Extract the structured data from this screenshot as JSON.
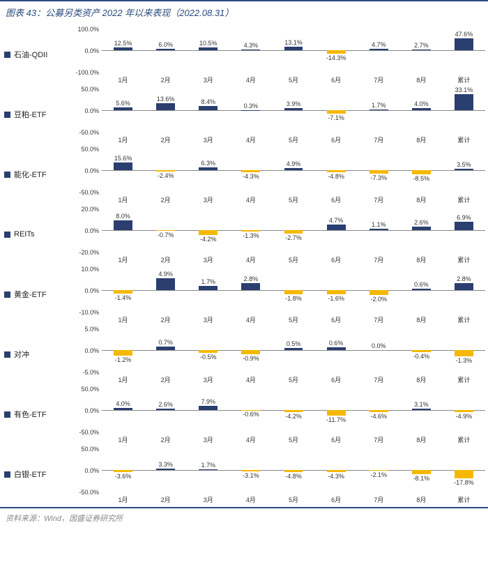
{
  "title": "图表 43：公募另类资产 2022 年以来表现（2022.08.31）",
  "source": "资料来源：Wind，国盛证券研究所",
  "categories": [
    "1月",
    "2月",
    "3月",
    "4月",
    "5月",
    "6月",
    "7月",
    "8月",
    "累计"
  ],
  "colors": {
    "positive": "#2a3e6f",
    "negative": "#f5b800",
    "border": "#2a4b7c",
    "text": "#333333",
    "title": "#2a4b7c",
    "source": "#888888",
    "baseline": "#888888"
  },
  "label_fontsize": 9,
  "title_fontsize": 13,
  "bar_width_ratio": 0.44,
  "series": [
    {
      "name": "石油-QDII",
      "ylim": [
        -100,
        100
      ],
      "yticks": [
        -100,
        0,
        100
      ],
      "values": [
        12.5,
        6.0,
        10.5,
        4.3,
        13.1,
        -14.3,
        4.7,
        2.7,
        47.6
      ],
      "x_labels_over": [
        false,
        false,
        false,
        false,
        false,
        true,
        false,
        false,
        false
      ]
    },
    {
      "name": "豆粕-ETF",
      "ylim": [
        -50,
        50
      ],
      "yticks": [
        -50,
        0,
        50
      ],
      "values": [
        5.6,
        13.6,
        8.4,
        0.3,
        3.9,
        -7.1,
        1.7,
        4.0,
        33.1
      ],
      "x_labels_over": [
        false,
        false,
        false,
        false,
        false,
        true,
        false,
        false,
        false
      ]
    },
    {
      "name": "能化-ETF",
      "ylim": [
        -50,
        50
      ],
      "yticks": [
        -50,
        0,
        50
      ],
      "values": [
        15.6,
        -2.4,
        6.3,
        -4.3,
        4.9,
        -4.8,
        -7.3,
        -8.5,
        3.5
      ],
      "x_labels_over": [
        false,
        true,
        false,
        true,
        false,
        true,
        true,
        true,
        false
      ]
    },
    {
      "name": "REITs",
      "ylim": [
        -20,
        20
      ],
      "yticks": [
        -20,
        0,
        20
      ],
      "values": [
        8.0,
        -0.7,
        -4.2,
        -1.3,
        -2.7,
        4.7,
        1.1,
        2.6,
        6.9
      ],
      "x_labels_over": [
        false,
        true,
        true,
        true,
        true,
        false,
        false,
        false,
        false
      ]
    },
    {
      "name": "黄金-ETF",
      "ylim": [
        -10,
        10
      ],
      "yticks": [
        -10,
        0,
        10
      ],
      "values": [
        -1.4,
        4.9,
        1.7,
        2.8,
        -1.8,
        -1.6,
        -2.0,
        0.6,
        2.8
      ],
      "x_labels_over": [
        true,
        false,
        false,
        false,
        true,
        true,
        true,
        false,
        false
      ]
    },
    {
      "name": "对冲",
      "ylim": [
        -5,
        5
      ],
      "yticks": [
        -5,
        0,
        5
      ],
      "values": [
        -1.2,
        0.7,
        -0.5,
        -0.9,
        0.5,
        0.6,
        0.0,
        -0.4,
        -1.3
      ],
      "x_labels_over": [
        true,
        false,
        true,
        true,
        false,
        false,
        false,
        true,
        true
      ]
    },
    {
      "name": "有色-ETF",
      "ylim": [
        -50,
        50
      ],
      "yticks": [
        -50,
        0,
        50
      ],
      "values": [
        4.0,
        2.6,
        7.9,
        -0.6,
        -4.2,
        -11.7,
        -4.6,
        3.1,
        -4.9
      ],
      "x_labels_over": [
        false,
        false,
        false,
        true,
        true,
        true,
        true,
        false,
        true
      ]
    },
    {
      "name": "白银-ETF",
      "ylim": [
        -50,
        50
      ],
      "yticks": [
        -50,
        0,
        50
      ],
      "values": [
        -3.6,
        3.3,
        1.7,
        -3.1,
        -4.8,
        -4.3,
        -2.1,
        -8.1,
        -17.8
      ],
      "x_labels_over": [
        true,
        false,
        false,
        true,
        true,
        true,
        true,
        true,
        true
      ]
    }
  ]
}
